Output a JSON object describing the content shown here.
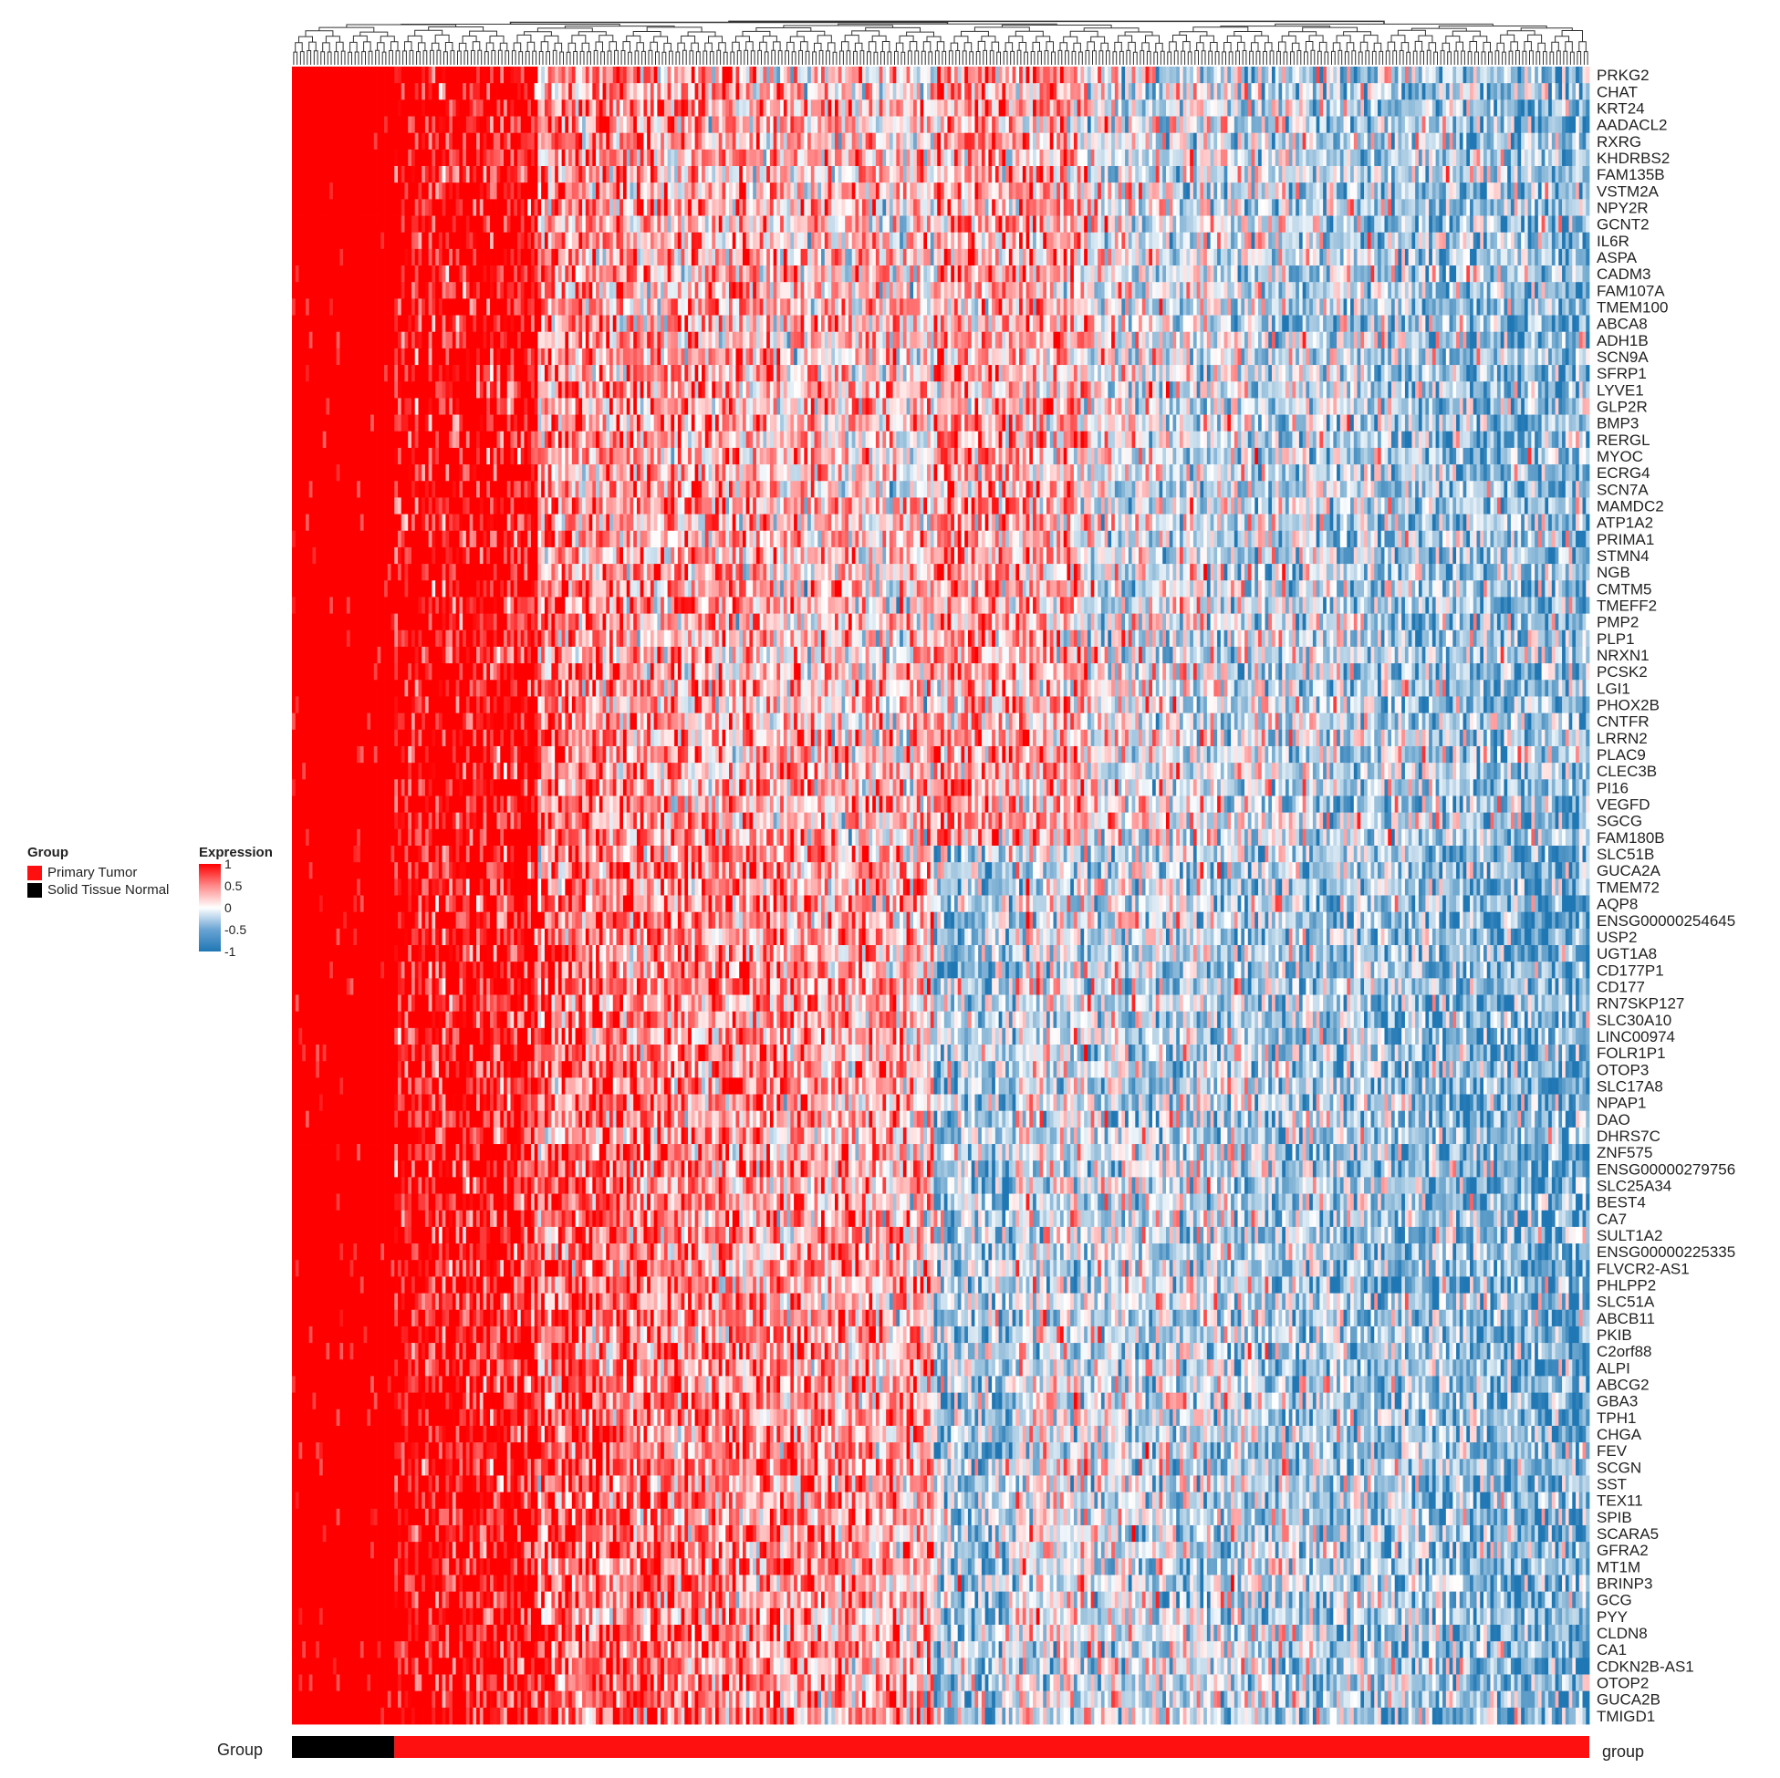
{
  "chart_data": {
    "type": "heatmap",
    "title": "",
    "colorscale": {
      "title": "Expression",
      "ticks": [
        "1",
        "0.5",
        "0",
        "-0.5",
        "-1"
      ],
      "high_color": "#ff0000",
      "mid_color": "#ffffff",
      "low_color": "#1f77b4",
      "range": [
        -1,
        1
      ]
    },
    "group_legend": {
      "title": "Group",
      "items": [
        {
          "label": "Primary Tumor",
          "color": "#ff1010"
        },
        {
          "label": "Solid Tissue Normal",
          "color": "#000000"
        }
      ]
    },
    "group_bar": {
      "left_label": "Group",
      "right_label": "group",
      "normal_fraction": 0.079
    },
    "genes": [
      "PRKG2",
      "CHAT",
      "KRT24",
      "AADACL2",
      "RXRG",
      "KHDRBS2",
      "FAM135B",
      "VSTM2A",
      "NPY2R",
      "GCNT2",
      "IL6R",
      "ASPA",
      "CADM3",
      "FAM107A",
      "TMEM100",
      "ABCA8",
      "ADH1B",
      "SCN9A",
      "SFRP1",
      "LYVE1",
      "GLP2R",
      "BMP3",
      "RERGL",
      "MYOC",
      "ECRG4",
      "SCN7A",
      "MAMDC2",
      "ATP1A2",
      "PRIMA1",
      "STMN4",
      "NGB",
      "CMTM5",
      "TMEFF2",
      "PMP2",
      "PLP1",
      "NRXN1",
      "PCSK2",
      "LGI1",
      "PHOX2B",
      "CNTFR",
      "LRRN2",
      "PLAC9",
      "CLEC3B",
      "PI16",
      "VEGFD",
      "SGCG",
      "FAM180B",
      "SLC51B",
      "GUCA2A",
      "TMEM72",
      "AQP8",
      "ENSG00000254645",
      "USP2",
      "UGT1A8",
      "CD177P1",
      "CD177",
      "RN7SKP127",
      "SLC30A10",
      "LINC00974",
      "FOLR1P1",
      "OTOP3",
      "SLC17A8",
      "NPAP1",
      "DAO",
      "DHRS7C",
      "ZNF575",
      "ENSG00000279756",
      "SLC25A34",
      "BEST4",
      "CA7",
      "SULT1A2",
      "ENSG00000225335",
      "FLVCR2-AS1",
      "PHLPP2",
      "SLC51A",
      "ABCB11",
      "PKIB",
      "C2orf88",
      "ALPI",
      "ABCG2",
      "GBA3",
      "TPH1",
      "CHGA",
      "FEV",
      "SCGN",
      "SST",
      "TEX11",
      "SPIB",
      "SCARA5",
      "GFRA2",
      "MT1M",
      "BRINP3",
      "GCG",
      "PYY",
      "CLDN8",
      "CA1",
      "CDKN2B-AS1",
      "OTOP2",
      "GUCA2B",
      "TMIGD1"
    ],
    "n_samples": 380,
    "normal_samples": 30,
    "pattern_note": "Normal samples uniformly high (1); tumor samples mixed, trending toward low expression on the right"
  }
}
